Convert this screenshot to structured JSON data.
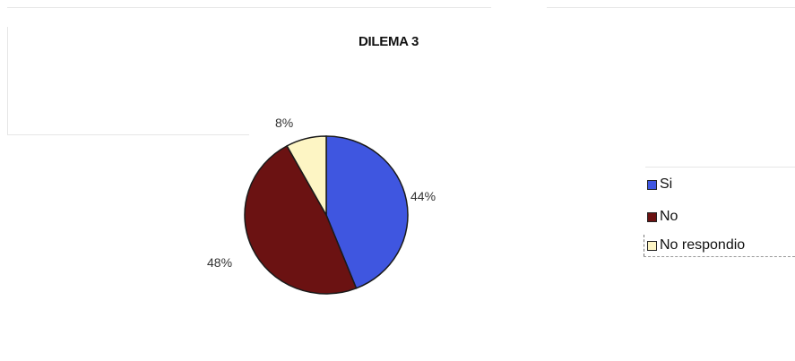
{
  "chart_data": {
    "type": "pie",
    "title": "DILEMA 3",
    "categories": [
      "Si",
      "No",
      "No respondio"
    ],
    "values": [
      44,
      48,
      8
    ],
    "data_labels": [
      "44%",
      "48%",
      "8%"
    ],
    "colors": [
      "#3f56e0",
      "#6b1212",
      "#fdf5c4"
    ],
    "legend_position": "right"
  }
}
